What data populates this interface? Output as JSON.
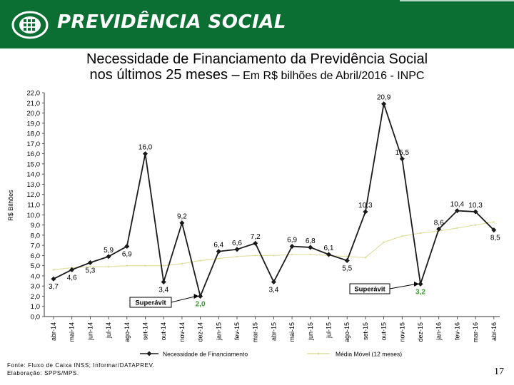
{
  "header": {
    "brand": "PREVIDÊNCIA SOCIAL",
    "bg_color": "#0b6e33"
  },
  "title": {
    "line1": "Necessidade de Financiamento da Previdência Social",
    "line2_main": "nos últimos 25 meses –",
    "line2_suffix": " Em R$ bilhões de Abril/2016 - INPC"
  },
  "chart_data": {
    "type": "line",
    "ylabel": "R$ Bilhões",
    "ylim": [
      0,
      22
    ],
    "y_ticks": [
      "0,0",
      "1,0",
      "2,0",
      "3,0",
      "4,0",
      "5,0",
      "6,0",
      "7,0",
      "8,0",
      "9,0",
      "10,0",
      "11,0",
      "12,0",
      "13,0",
      "14,0",
      "15,0",
      "16,0",
      "17,0",
      "18,0",
      "19,0",
      "20,0",
      "21,0",
      "22,0"
    ],
    "categories": [
      "abr-14",
      "mai-14",
      "jun-14",
      "jul-14",
      "ago-14",
      "set-14",
      "out-14",
      "nov-14",
      "dez-14",
      "jan-15",
      "fev-15",
      "mar-15",
      "abr-15",
      "mai-15",
      "jun-15",
      "jul-15",
      "ago-15",
      "set-15",
      "out-15",
      "nov-15",
      "dez-15",
      "jan-16",
      "fev-16",
      "mar-16",
      "abr-16"
    ],
    "series": [
      {
        "name": "Necessidade de Financiamento",
        "color": "#1a1a1a",
        "values": [
          3.7,
          4.6,
          5.3,
          5.9,
          6.9,
          16.0,
          3.4,
          9.2,
          2.0,
          6.4,
          6.6,
          7.2,
          3.4,
          6.9,
          6.8,
          6.1,
          5.5,
          10.3,
          20.9,
          15.5,
          3.2,
          8.6,
          10.4,
          10.3,
          8.5
        ],
        "labels": [
          "3,7",
          "4,6",
          "5,3",
          "5,9",
          "6,9",
          "16,0",
          "3,4",
          "9,2",
          "2,0",
          "6,4",
          "6,6",
          "7,2",
          "3,4",
          "6,9",
          "6,8",
          "6,1",
          "5,5",
          "10,3",
          "20,9",
          "15,5",
          "3,2",
          "8,6",
          "10,4",
          "10,3",
          "8,5"
        ]
      },
      {
        "name": "Média Móvel (12 meses)",
        "color": "#e0dfa2",
        "values": [
          4.6,
          4.8,
          4.9,
          4.9,
          5.0,
          5.0,
          5.0,
          5.2,
          5.5,
          5.7,
          5.9,
          6.0,
          6.0,
          6.1,
          6.1,
          6.0,
          5.9,
          5.8,
          7.3,
          7.9,
          8.2,
          8.4,
          8.7,
          9.0,
          9.3
        ]
      }
    ],
    "highlight_color": "#3a9a2e",
    "annotations": [
      {
        "text": "Superávit",
        "target_index": 8
      },
      {
        "text": "Superávit",
        "target_index": 20
      }
    ]
  },
  "footer": {
    "source_line1": "Fonte: Fluxo de Caixa INSS; Informar/DATAPREV.",
    "source_line2": "Elaboração: SPPS/MPS.",
    "page_number": "17"
  }
}
